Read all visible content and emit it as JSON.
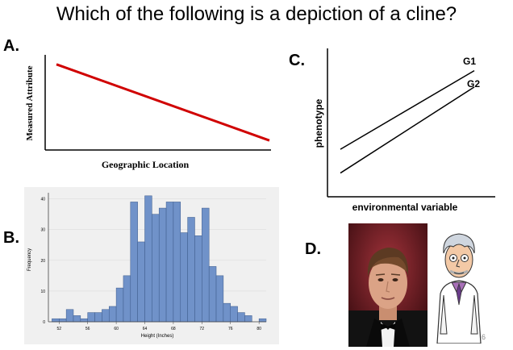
{
  "title": "Which of the following is a depiction of a cline?",
  "options": {
    "a": {
      "letter": "A.",
      "xlabel": "Geographic Location",
      "ylabel": "Measured Attribute"
    },
    "b": {
      "letter": "B.",
      "xlabel": "Height (Inches)",
      "ylabel": "Frequency"
    },
    "c": {
      "letter": "C.",
      "xlabel": "environmental variable",
      "ylabel": "phenotype",
      "series": [
        "G1",
        "G2"
      ]
    },
    "d": {
      "letter": "D."
    }
  },
  "slide_number": "6",
  "colors": {
    "red_line": "#d00000",
    "bar_fill": "#7092c9",
    "bar_stroke": "#3c5a8a"
  },
  "chart_data": [
    {
      "type": "line",
      "xlabel": "Geographic Location",
      "ylabel": "Measured Attribute",
      "x": [
        0,
        1
      ],
      "values": [
        0.9,
        0.1
      ]
    },
    {
      "type": "bar",
      "xlabel": "Height (Inches)",
      "ylabel": "Frequency",
      "x_ticks": [
        52,
        56,
        60,
        64,
        68,
        72,
        76,
        80
      ],
      "y_ticks": [
        0,
        10,
        20,
        30,
        40
      ],
      "xlim": [
        50.5,
        81
      ],
      "ylim": [
        0,
        42
      ],
      "bin_width": 1,
      "bin_starts": [
        51,
        52,
        53,
        54,
        55,
        56,
        57,
        58,
        59,
        60,
        61,
        62,
        63,
        64,
        65,
        66,
        67,
        68,
        69,
        70,
        71,
        72,
        73,
        74,
        75,
        76,
        77,
        78,
        79,
        80
      ],
      "values": [
        1,
        1,
        4,
        2,
        1,
        3,
        3,
        4,
        5,
        11,
        15,
        39,
        26,
        41,
        35,
        37,
        39,
        39,
        29,
        34,
        28,
        37,
        18,
        15,
        6,
        5,
        3,
        2,
        0,
        1
      ]
    },
    {
      "type": "line",
      "xlabel": "environmental variable",
      "ylabel": "phenotype",
      "series": [
        {
          "name": "G1",
          "x": [
            0,
            1
          ],
          "values": [
            0.32,
            0.85
          ]
        },
        {
          "name": "G2",
          "x": [
            0,
            1
          ],
          "values": [
            0.16,
            0.74
          ]
        }
      ]
    }
  ]
}
